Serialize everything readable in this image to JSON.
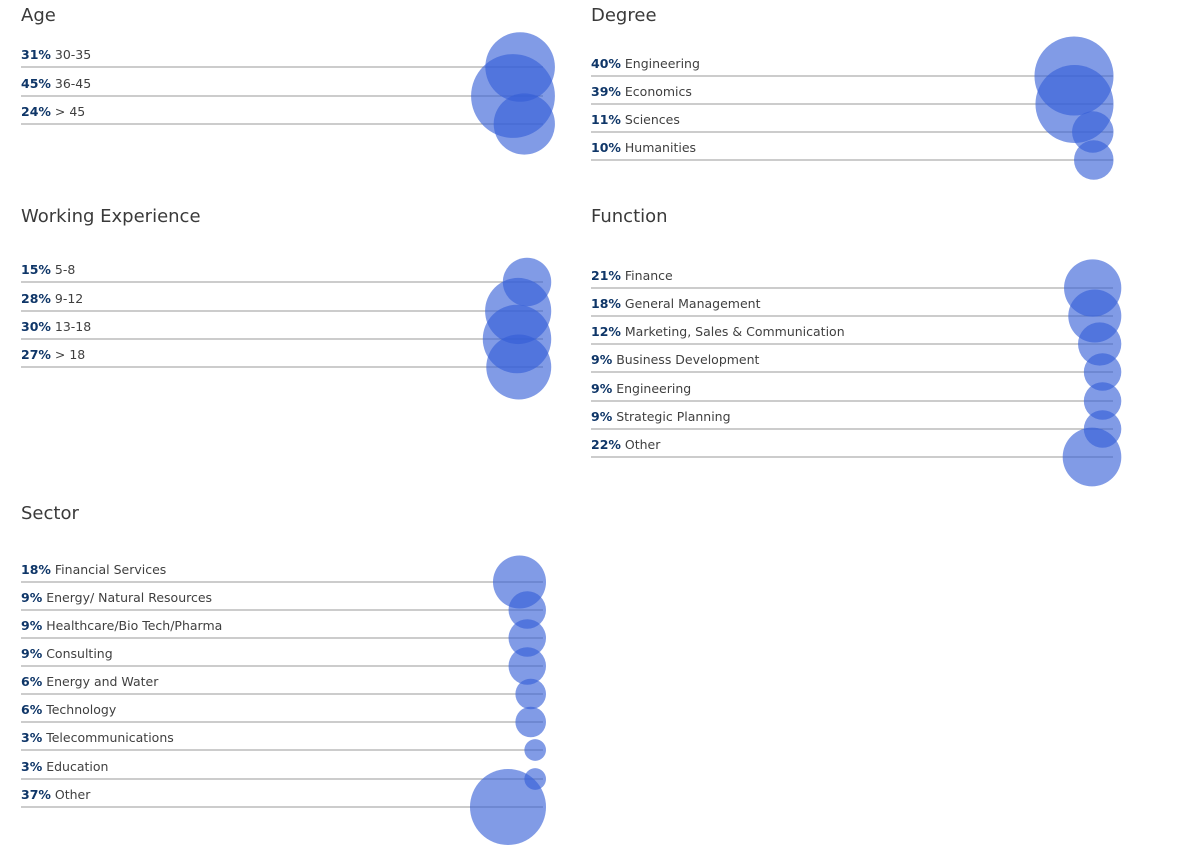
{
  "bubble_color": "#345dd7",
  "pct_color": "#0f3668",
  "chart_data": [
    {
      "type": "bubble",
      "title": "Age",
      "categories": [
        "30-35",
        "36-45",
        "> 45"
      ],
      "values": [
        31,
        45,
        24
      ],
      "value_labels": [
        "31%",
        "45%",
        "24%"
      ]
    },
    {
      "type": "bubble",
      "title": "Degree",
      "categories": [
        "Engineering",
        "Economics",
        "Sciences",
        "Humanities"
      ],
      "values": [
        40,
        39,
        11,
        10
      ],
      "value_labels": [
        "40%",
        "39%",
        "11%",
        "10%"
      ]
    },
    {
      "type": "bubble",
      "title": "Working Experience",
      "categories": [
        "5-8",
        "9-12",
        "13-18",
        "> 18"
      ],
      "values": [
        15,
        28,
        30,
        27
      ],
      "value_labels": [
        "15%",
        "28%",
        "30%",
        "27%"
      ]
    },
    {
      "type": "bubble",
      "title": "Function",
      "categories": [
        "Finance",
        "General Management",
        "Marketing, Sales & Communication",
        "Business Development",
        "Engineering",
        "Strategic Planning",
        "Other"
      ],
      "values": [
        21,
        18,
        12,
        9,
        9,
        9,
        22
      ],
      "value_labels": [
        "21%",
        "18%",
        "12%",
        "9%",
        "9%",
        "9%",
        "22%"
      ]
    },
    {
      "type": "bubble",
      "title": "Sector",
      "categories": [
        "Financial Services",
        "Energy/ Natural Resources",
        "Healthcare/Bio Tech/Pharma",
        "Consulting",
        "Energy and Water",
        "Technology",
        "Telecommunications",
        "Education",
        "Other"
      ],
      "values": [
        18,
        9,
        9,
        9,
        6,
        6,
        3,
        3,
        37
      ],
      "value_labels": [
        "18%",
        "9%",
        "9%",
        "9%",
        "6%",
        "6%",
        "3%",
        "3%",
        "37%"
      ]
    }
  ]
}
